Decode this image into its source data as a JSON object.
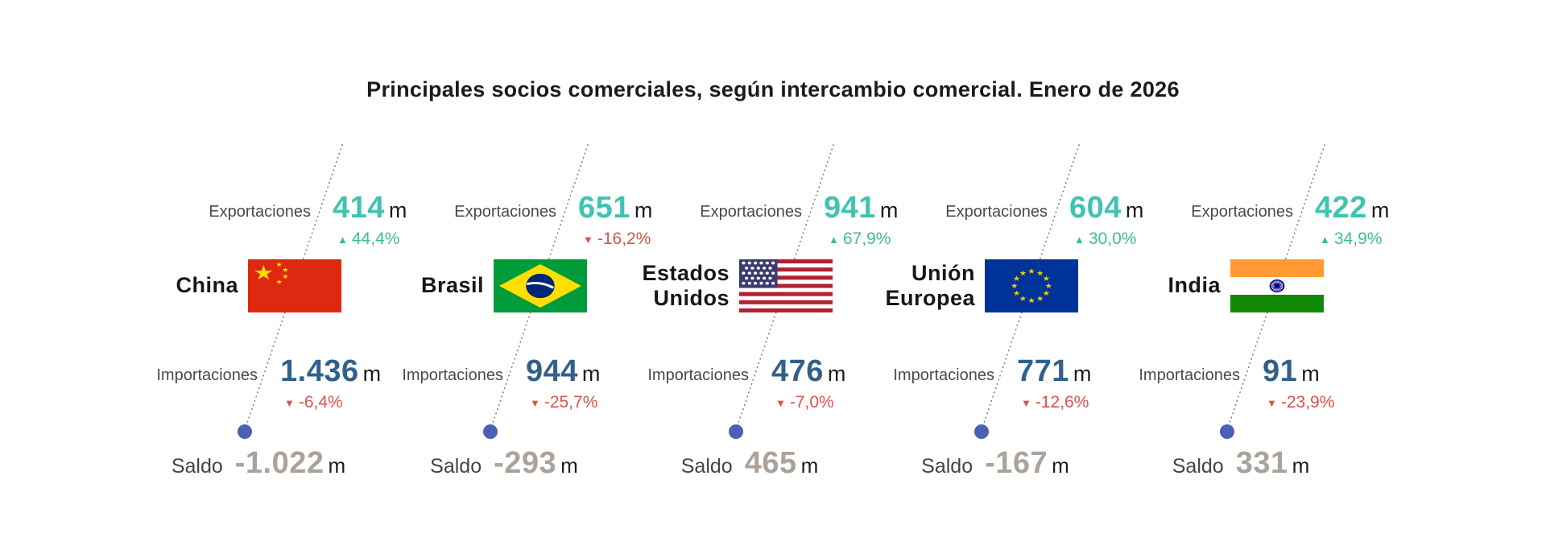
{
  "title": "Principales socios comerciales, según intercambio comercial. Enero de 2026",
  "labels": {
    "exports": "Exportaciones",
    "imports": "Importaciones",
    "balance": "Saldo",
    "unit": "m"
  },
  "icons": {
    "up": "▲",
    "down": "▼"
  },
  "colors": {
    "teal": "#41C3B1",
    "positive": "#3CBE8E",
    "negative": "#D9534B",
    "importBlue": "#32608C",
    "balanceGray": "#ABA39B",
    "labelGray": "#4a4a4a",
    "dotBlue": "#4A61B4",
    "lineGray": "#757575"
  },
  "partners": [
    {
      "name": "China",
      "flag": "cn",
      "exports": {
        "value": "414",
        "change": "44,4%",
        "direction": "up"
      },
      "imports": {
        "value": "1.436",
        "change": "-6,4%",
        "direction": "down"
      },
      "balance": {
        "value": "-1.022"
      }
    },
    {
      "name": "Brasil",
      "flag": "br",
      "exports": {
        "value": "651",
        "change": "-16,2%",
        "direction": "down"
      },
      "imports": {
        "value": "944",
        "change": "-25,7%",
        "direction": "down"
      },
      "balance": {
        "value": "-293"
      }
    },
    {
      "name": "Estados Unidos",
      "flag": "us",
      "exports": {
        "value": "941",
        "change": "67,9%",
        "direction": "up"
      },
      "imports": {
        "value": "476",
        "change": "-7,0%",
        "direction": "down"
      },
      "balance": {
        "value": "465"
      }
    },
    {
      "name": "Unión Europea",
      "flag": "eu",
      "exports": {
        "value": "604",
        "change": "30,0%",
        "direction": "up"
      },
      "imports": {
        "value": "771",
        "change": "-12,6%",
        "direction": "down"
      },
      "balance": {
        "value": "-167"
      }
    },
    {
      "name": "India",
      "flag": "in",
      "exports": {
        "value": "422",
        "change": "34,9%",
        "direction": "up"
      },
      "imports": {
        "value": "91",
        "change": "-23,9%",
        "direction": "down"
      },
      "balance": {
        "value": "331"
      }
    }
  ],
  "chart_data": {
    "type": "table",
    "title": "Principales socios comerciales, según intercambio comercial. Enero de 2026",
    "categories": [
      "China",
      "Brasil",
      "Estados Unidos",
      "Unión Europea",
      "India"
    ],
    "series": [
      {
        "name": "Exportaciones (m)",
        "values": [
          414,
          651,
          941,
          604,
          422
        ]
      },
      {
        "name": "Variación exportaciones (%)",
        "values": [
          44.4,
          -16.2,
          67.9,
          30.0,
          34.9
        ]
      },
      {
        "name": "Importaciones (m)",
        "values": [
          1436,
          944,
          476,
          771,
          91
        ]
      },
      {
        "name": "Variación importaciones (%)",
        "values": [
          -6.4,
          -25.7,
          -7.0,
          -12.6,
          -23.9
        ]
      },
      {
        "name": "Saldo (m)",
        "values": [
          -1022,
          -293,
          465,
          -167,
          331
        ]
      }
    ],
    "layout": {
      "orientation": "5 country columns, diagonal dotted connector from exports to balance dot",
      "legend": "none",
      "grid": false
    }
  }
}
